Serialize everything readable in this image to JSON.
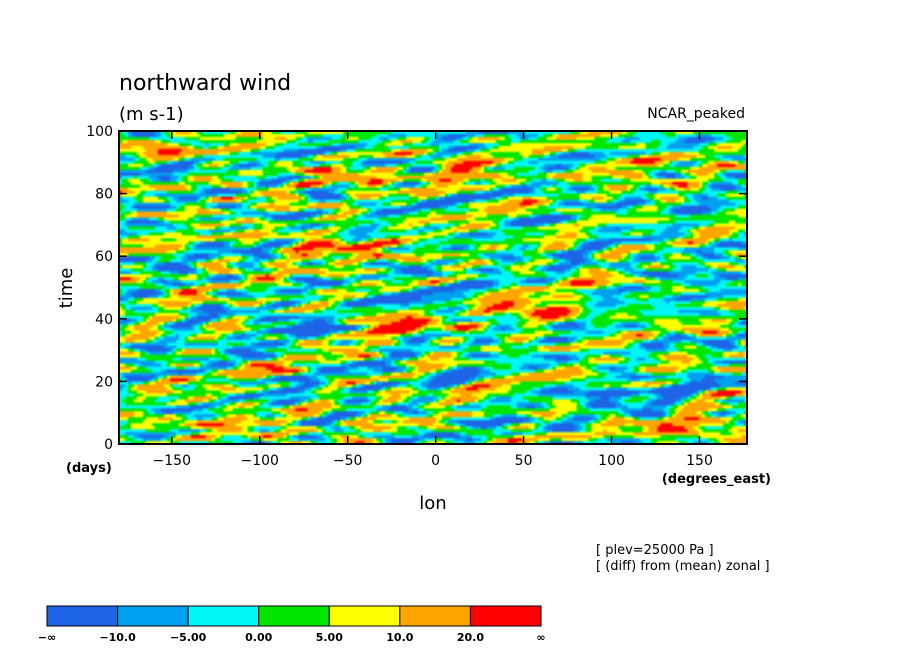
{
  "chart_data": {
    "type": "heatmap",
    "title": "northward wind",
    "subtitle": "(m s-1)",
    "top_right_label": "NCAR_peaked",
    "xlabel": "lon",
    "ylabel": "time",
    "x_units": "(degrees_east)",
    "y_units": "(days)",
    "xlim": [
      -180,
      177
    ],
    "ylim": [
      0,
      100
    ],
    "xticks": [
      -150,
      -100,
      -50,
      0,
      50,
      100,
      150
    ],
    "xtick_labels": [
      "−150",
      "−100",
      "−50",
      "0",
      "50",
      "100",
      "150"
    ],
    "yticks": [
      0,
      20,
      40,
      60,
      80,
      100
    ],
    "ytick_labels": [
      "0",
      "20",
      "40",
      "60",
      "80",
      "100"
    ],
    "annotations": [
      "[ plev=25000 Pa ]",
      "[ (diff) from (mean) zonal ]"
    ],
    "colorbar": {
      "levels": [
        "−∞",
        "−10.0",
        "−5.00",
        "0.00",
        "5.00",
        "10.0",
        "20.0",
        "∞"
      ],
      "bounds": [
        -10,
        -5,
        0,
        5,
        10,
        20
      ],
      "colors": [
        "#1e64e6",
        "#00a0f0",
        "#00f5f5",
        "#00e600",
        "#ffff00",
        "#ffa500",
        "#ff0000"
      ]
    },
    "features": [
      {
        "lon": 20,
        "day": 86,
        "value": 22
      },
      {
        "lon": -40,
        "day": 85,
        "value": 14
      },
      {
        "lon": -60,
        "day": 63,
        "value": 21
      },
      {
        "lon": -25,
        "day": 38,
        "value": 23
      },
      {
        "lon": 55,
        "day": 43,
        "value": 22
      },
      {
        "lon": -110,
        "day": 6,
        "value": 14
      },
      {
        "lon": 150,
        "day": 4,
        "value": 16
      },
      {
        "lon": -75,
        "day": 38,
        "value": -13
      },
      {
        "lon": 0,
        "day": 46,
        "value": -11
      },
      {
        "lon": 110,
        "day": 16,
        "value": -11
      },
      {
        "lon": -20,
        "day": 88,
        "value": -9
      },
      {
        "lon": 140,
        "day": 56,
        "value": -9
      },
      {
        "lon": 60,
        "day": 80,
        "value": -8
      },
      {
        "lon": -130,
        "day": 94,
        "value": 9
      },
      {
        "lon": 110,
        "day": 90,
        "value": 11
      }
    ]
  }
}
